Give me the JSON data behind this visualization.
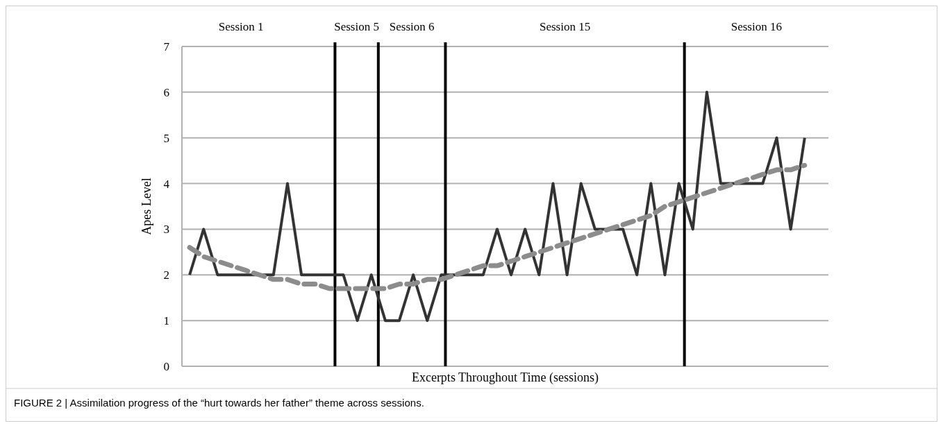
{
  "chart_data": {
    "type": "line",
    "xlabel": "Excerpts Throughout Time (sessions)",
    "ylabel": "Apes Level",
    "annotations": [
      "Session 1",
      "Session 5",
      "Session 6",
      "Session 15",
      "Session 16",
      "FIGURE 2 | Assimilation progress of the “hurt towards her father” theme across sessions."
    ],
    "categories": [
      null,
      null,
      null,
      null,
      null,
      null,
      null,
      null,
      null,
      null,
      null,
      null,
      null,
      null,
      null,
      null,
      null,
      null,
      null,
      null,
      null,
      null,
      null,
      null,
      null,
      null,
      null,
      null,
      null,
      null,
      null,
      null,
      null,
      null,
      null,
      null,
      null,
      null,
      null,
      null,
      null,
      null,
      null,
      null,
      null
    ],
    "series": [
      {
        "color": "#333333",
        "line_style": "solid",
        "values": [
          2,
          3,
          2,
          2,
          2,
          2,
          2,
          4,
          2,
          2,
          2,
          2,
          1,
          2,
          1,
          1,
          2,
          1,
          2,
          2,
          2,
          2,
          3,
          2,
          3,
          2,
          4,
          2,
          4,
          3,
          3,
          3,
          2,
          4,
          2,
          4,
          3,
          6,
          4,
          4,
          4,
          4,
          5,
          3,
          5
        ]
      },
      {
        "color": "#8c8c8c",
        "line_style": "dashed",
        "values": [
          2.6,
          2.4,
          2.3,
          2.2,
          2.1,
          2.0,
          1.9,
          1.9,
          1.8,
          1.8,
          1.7,
          1.7,
          1.7,
          1.7,
          1.7,
          1.8,
          1.8,
          1.9,
          1.9,
          2.0,
          2.1,
          2.2,
          2.2,
          2.3,
          2.4,
          2.5,
          2.6,
          2.7,
          2.8,
          2.9,
          3.0,
          3.1,
          3.2,
          3.3,
          3.5,
          3.6,
          3.7,
          3.8,
          3.9,
          4.0,
          4.1,
          4.2,
          4.3,
          4.3,
          4.4
        ]
      }
    ],
    "ylim": [
      0,
      7
    ],
    "yticks": [
      0,
      1,
      2,
      3,
      4,
      5,
      6,
      7
    ],
    "tick_labels": "y",
    "grid": "y"
  }
}
